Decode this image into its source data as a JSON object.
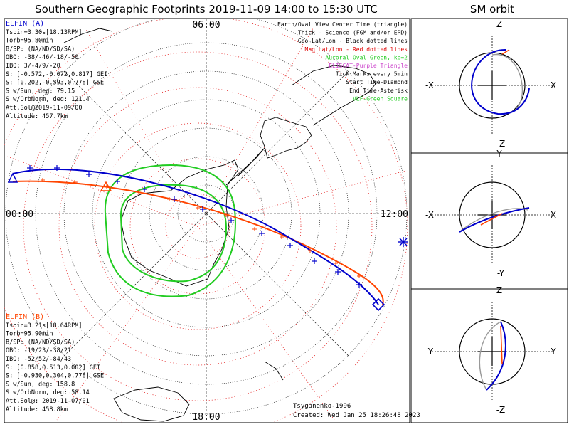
{
  "main_title": "Southern Geographic Footprints 2019-11-09 14:00 to 15:30 UTC",
  "orbit_title": "SM orbit",
  "hour_labels": {
    "top": "06:00",
    "left": "00:00",
    "right": "12:00",
    "bottom": "18:00"
  },
  "legend": [
    {
      "text": "Earth/Oval View Center Time (triangle)",
      "color": "#000000"
    },
    {
      "text": "Thick - Science (FGM and/or EPD)",
      "color": "#000000"
    },
    {
      "text": "Geo Lat/Lon - Black dotted lines",
      "color": "#000000"
    },
    {
      "text": "Mag Lat/Lon - Red dotted lines",
      "color": "#e00000"
    },
    {
      "text": "Auroral Oval-Green, kp=2",
      "color": "#22cc22"
    },
    {
      "text": "ELISCAT-Purple Triangle",
      "color": "#cc44cc"
    },
    {
      "text": "Tick Marks every 5min",
      "color": "#000000"
    },
    {
      "text": "Start Time-Diamond",
      "color": "#000000"
    },
    {
      "text": "End Time-Asterisk",
      "color": "#000000"
    },
    {
      "text": "VLF-Green Square",
      "color": "#22cc22"
    }
  ],
  "elfin_a": {
    "color": "#0000cc",
    "lines": [
      "ELFIN (A)",
      "Tspin=3.30s[18.13RPM]",
      "Torb=95.80min",
      "B/SP: (NA/ND/SD/SA)",
      "OBO: -38/-46/-18/-50",
      "IBO: 3/-4/9/-20",
      "S: [-0.572,-0.072,0.817] GEI",
      "S: [0.202,-0.593,0.778] GSE",
      "S w/Sun, deg: 79.15",
      "S w/OrbNorm, deg: 121.4",
      "Att.Sol@2019-11-09/00",
      "Altitude: 457.7km"
    ]
  },
  "elfin_b": {
    "color": "#ff4400",
    "lines": [
      "ELFIN (B)",
      "Tspin=3.21s[18.64RPM]",
      "Torb=95.90min",
      "B/SP: (NA/ND/SD/SA)",
      "OBO: -19/23/-38/21",
      "IBO: -52/52/-84/43",
      "S: [0.858,0.513,0.002] GEI",
      "S: [-0.930,0.304,0.778] GSE",
      "S w/Sun, deg: 158.8",
      "S w/OrbNorm, deg: 58.14",
      "Att.Sol@: 2019-11-07/01",
      "Altitude: 458.8km"
    ]
  },
  "footer": {
    "model": "Tsyganenko-1996",
    "created": "Created: Wed Jan 25 18:26:48 2023"
  },
  "orbit_panels": [
    {
      "top": "Z",
      "bottom": "-Z",
      "left": "-X",
      "right": "X"
    },
    {
      "top": "Y",
      "bottom": "-Y",
      "left": "-X",
      "right": "X"
    },
    {
      "top": "Z",
      "bottom": "-Z",
      "left": "-Y",
      "right": "Y"
    }
  ],
  "colors": {
    "elfin_a": "#0000cc",
    "elfin_b": "#ff4400",
    "oval": "#22cc22",
    "geo_grid": "#000000",
    "mag_grid": "#e00000"
  },
  "chart_data": {
    "type": "line",
    "projection": "south polar geographic",
    "title": "Southern Geographic Footprints 2019-11-09 14:00 to 15:30 UTC",
    "series": [
      {
        "name": "ELFIN (A)",
        "color": "#0000cc"
      },
      {
        "name": "ELFIN (B)",
        "color": "#ff4400"
      }
    ],
    "tick_interval": "5min"
  }
}
